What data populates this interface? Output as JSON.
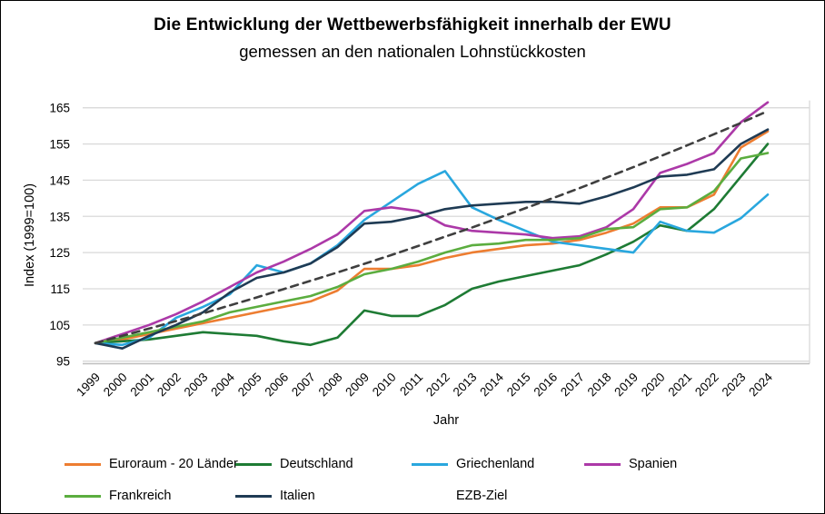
{
  "window": {
    "background": "#ffffff",
    "border_color": "#000000",
    "grid_color": "#d9d9d9",
    "axis_line_color": "#bfbfbf",
    "text_color": "#000000"
  },
  "title": "Die Entwicklung der Wettbewerbsfähigkeit innerhalb der EWU",
  "subtitle": "gemessen an den nationalen Lohnstückkosten",
  "chart_data": {
    "type": "line",
    "title": "Die Entwicklung der Wettbewerbsfähigkeit innerhalb der EWU",
    "subtitle": "gemessen an den nationalen Lohnstückkosten",
    "xlabel": "Jahr",
    "ylabel": "Index (1999=100)",
    "ylim": [
      95,
      165
    ],
    "ytick_step": 10,
    "yticks": [
      95,
      105,
      115,
      125,
      135,
      145,
      155,
      165
    ],
    "grid": true,
    "legend_position": "bottom",
    "x": [
      1999,
      2000,
      2001,
      2002,
      2003,
      2004,
      2005,
      2006,
      2007,
      2008,
      2009,
      2010,
      2011,
      2012,
      2013,
      2014,
      2015,
      2016,
      2017,
      2018,
      2019,
      2020,
      2021,
      2022,
      2023,
      2024
    ],
    "series": [
      {
        "name": "Euroraum - 20 Länder",
        "color": "#ED7D31",
        "dash": false,
        "values": [
          100,
          101,
          102.5,
          104,
          105.5,
          107,
          108.5,
          110,
          111.5,
          114.5,
          120.5,
          120.5,
          121.5,
          123.5,
          125,
          126,
          127,
          127.5,
          128.5,
          130.5,
          133,
          137.5,
          137.5,
          141,
          154,
          158.5
        ]
      },
      {
        "name": "Deutschland",
        "color": "#1E7B34",
        "dash": false,
        "values": [
          100,
          100.5,
          101,
          102,
          103,
          102.5,
          102,
          100.5,
          99.5,
          101.5,
          109,
          107.5,
          107.5,
          110.5,
          115,
          117,
          118.5,
          120,
          121.5,
          124.5,
          128,
          132.5,
          131,
          137,
          146,
          155
        ]
      },
      {
        "name": "Griechenland",
        "color": "#29A7DE",
        "dash": false,
        "values": [
          100,
          99.5,
          101.5,
          107,
          110,
          113.5,
          121.5,
          119.5,
          122,
          127,
          134,
          139,
          144,
          147.5,
          137.5,
          134,
          131,
          128,
          127,
          126,
          125,
          133.5,
          131,
          130.5,
          134.5,
          141
        ]
      },
      {
        "name": "Spanien",
        "color": "#AC39A8",
        "dash": false,
        "values": [
          100,
          102.5,
          105,
          108,
          111.5,
          115.5,
          119.5,
          122.5,
          126,
          130,
          136.5,
          137.5,
          136.5,
          132.5,
          131,
          130.5,
          130,
          129,
          129.5,
          132,
          137,
          147,
          149.5,
          152.5,
          161,
          166.5
        ]
      },
      {
        "name": "Frankreich",
        "color": "#5BAD3F",
        "dash": false,
        "values": [
          100,
          101.5,
          103,
          104.5,
          106,
          108.5,
          110,
          111.5,
          113,
          115.5,
          119,
          120.5,
          122.5,
          125,
          127,
          127.5,
          128.5,
          128.5,
          129,
          131.5,
          132,
          137,
          137.5,
          142,
          151,
          152.5
        ]
      },
      {
        "name": "Italien",
        "color": "#1F3B54",
        "dash": false,
        "values": [
          100,
          98.5,
          102,
          105,
          108.5,
          114,
          118,
          119.5,
          122,
          126.5,
          133,
          133.5,
          135,
          137,
          138,
          138.5,
          139,
          139,
          138.5,
          140.5,
          143,
          146,
          146.5,
          148,
          155,
          159
        ]
      },
      {
        "name": "EZB-Ziel",
        "color": "#3F3F3F",
        "dash": true,
        "values": [
          100,
          102,
          104,
          106.1,
          108.2,
          110.4,
          112.6,
          114.9,
          117.2,
          119.5,
          121.9,
          124.3,
          126.8,
          129.4,
          131.9,
          134.6,
          137.3,
          140,
          142.8,
          145.7,
          148.6,
          151.6,
          154.6,
          157.7,
          160.8,
          164.1
        ]
      }
    ]
  },
  "legend": {
    "row_tops": [
      502,
      537
    ],
    "column_lefts": [
      70,
      258,
      452,
      642
    ],
    "rows": [
      [
        0,
        1,
        2,
        3
      ],
      [
        4,
        5,
        6
      ]
    ]
  }
}
